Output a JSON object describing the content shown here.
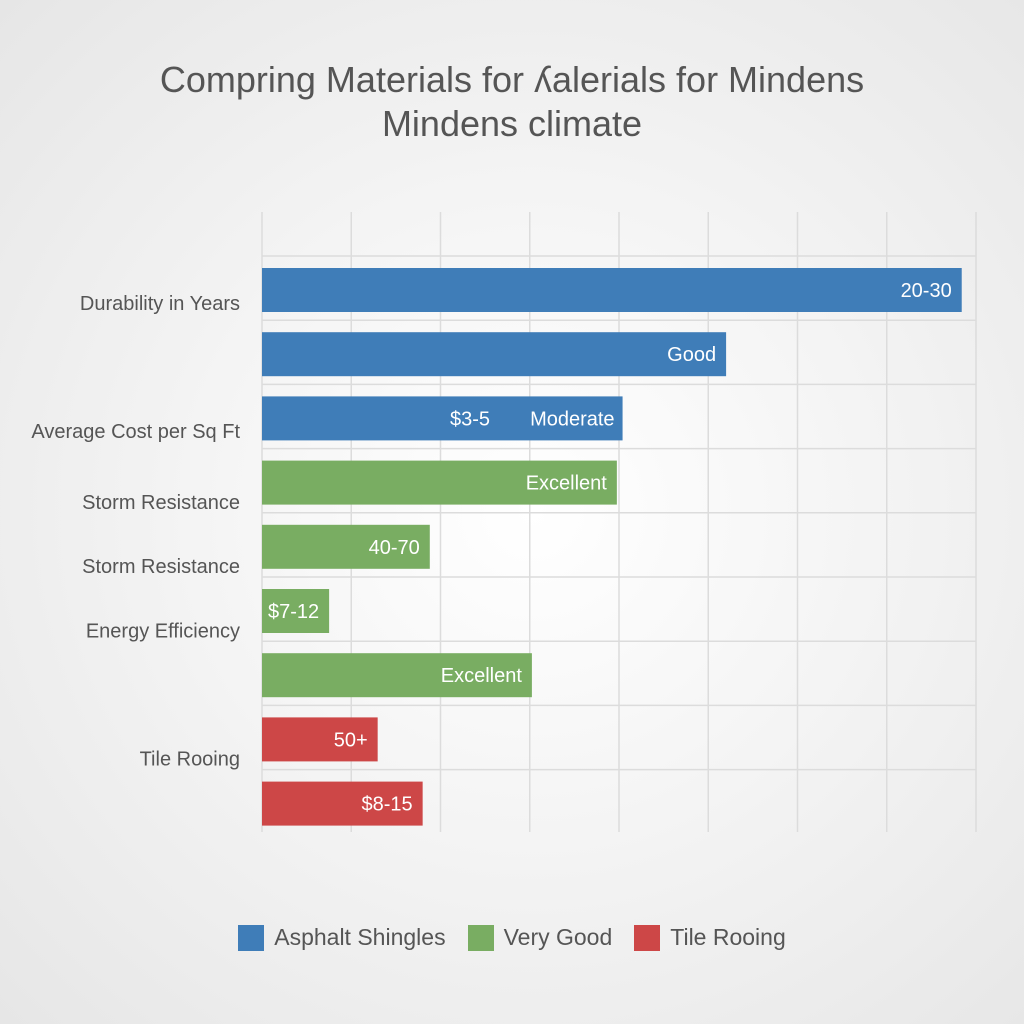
{
  "chart_data": {
    "type": "bar",
    "orientation": "horizontal",
    "title_lines": [
      "Compring Materials for ʎalerials for Mindens",
      "Mindens climate"
    ],
    "xlabel": "",
    "ylabel": "",
    "grid": true,
    "legend_position": "bottom-center",
    "x_max": 1.0,
    "category_labels": [
      {
        "text": "Durability in Years",
        "row": 0.2
      },
      {
        "text": "Average Cost per Sq Ft",
        "row": 2.2
      },
      {
        "text": "Storm Resistance",
        "row": 3.3
      },
      {
        "text": "Storm Resistance",
        "row": 4.3
      },
      {
        "text": "Energy Efficiency",
        "row": 5.3
      },
      {
        "text": "Tile Rooing",
        "row": 7.3
      }
    ],
    "bars": [
      {
        "row": 0,
        "value": 0.98,
        "series": 0,
        "label": "20-30"
      },
      {
        "row": 1,
        "value": 0.65,
        "series": 0,
        "label": "Good"
      },
      {
        "row": 2,
        "value": 0.505,
        "series": 0,
        "label": "$3-5",
        "label2": "Moderate"
      },
      {
        "row": 3,
        "value": 0.497,
        "series": 1,
        "label": "Excellent"
      },
      {
        "row": 4,
        "value": 0.235,
        "series": 1,
        "label": "40-70"
      },
      {
        "row": 5,
        "value": 0.094,
        "series": 1,
        "label": "$7-12"
      },
      {
        "row": 6,
        "value": 0.378,
        "series": 1,
        "label": "Excellent"
      },
      {
        "row": 7,
        "value": 0.162,
        "series": 2,
        "label": "50+"
      },
      {
        "row": 8,
        "value": 0.225,
        "series": 2,
        "label": "$8-15"
      }
    ],
    "series": [
      {
        "name": "Asphalt Shingles",
        "color": "#3f7db8"
      },
      {
        "name": "Very Good",
        "color": "#79ad62"
      },
      {
        "name": "Tile Rooing",
        "color": "#cd4747"
      }
    ]
  }
}
